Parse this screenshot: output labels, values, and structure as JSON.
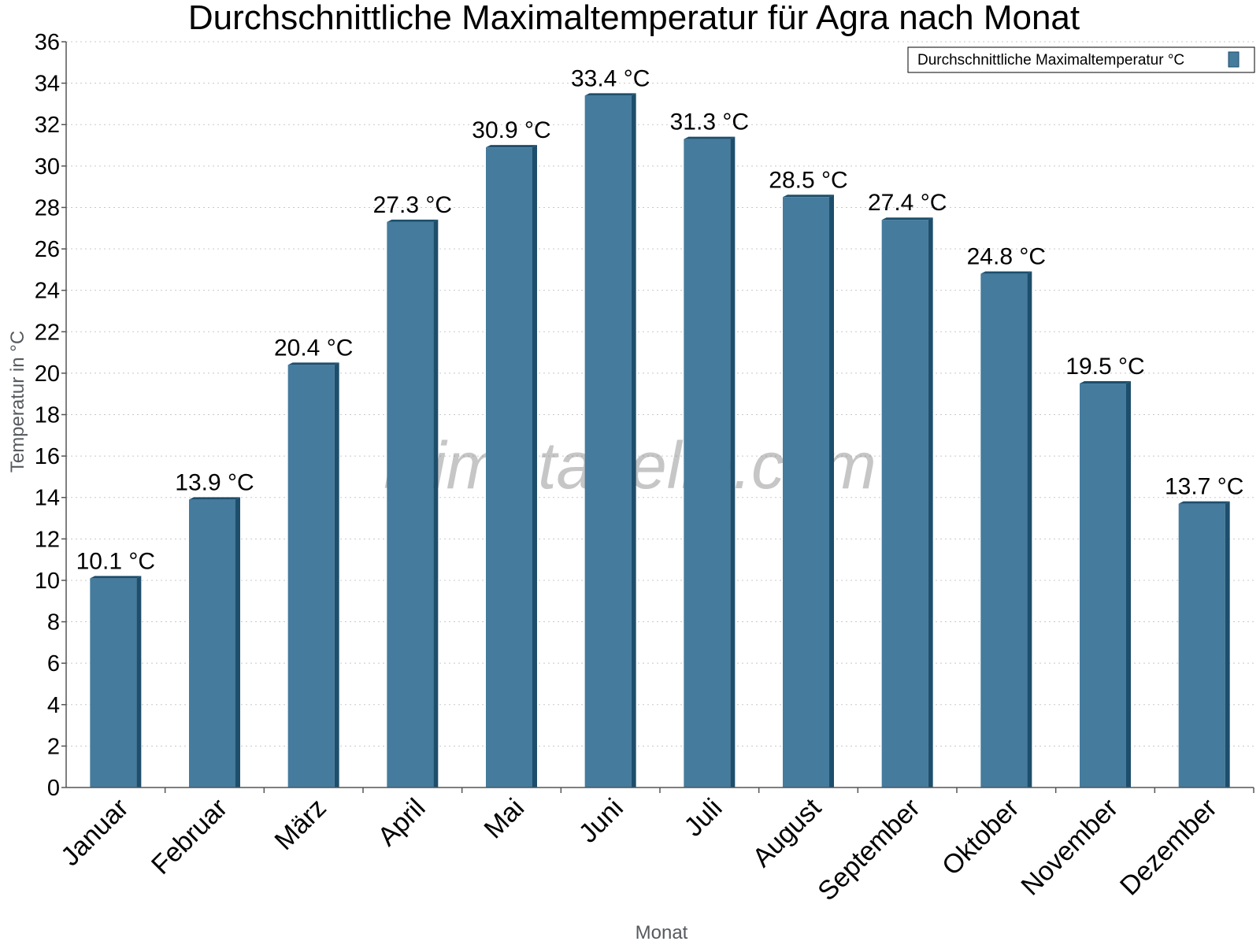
{
  "chart_data": {
    "type": "bar",
    "title": "Durchschnittliche Maximaltemperatur für Agra nach Monat",
    "xlabel": "Monat",
    "ylabel": "Temperatur in °C",
    "ylim": [
      0,
      36
    ],
    "ytick_step": 2,
    "grid": true,
    "legend_position": "top-right",
    "categories": [
      "Januar",
      "Februar",
      "März",
      "April",
      "Mai",
      "Juni",
      "Juli",
      "August",
      "September",
      "Oktober",
      "November",
      "Dezember"
    ],
    "series": [
      {
        "name": "Durchschnittliche Maximaltemperatur °C",
        "values": [
          10.1,
          13.9,
          20.4,
          27.3,
          30.9,
          33.4,
          31.3,
          28.5,
          27.4,
          24.8,
          19.5,
          13.7
        ],
        "value_labels": [
          "10.1 °C",
          "13.9 °C",
          "20.4 °C",
          "27.3 °C",
          "30.9 °C",
          "33.4 °C",
          "31.3 °C",
          "28.5 °C",
          "27.4 °C",
          "24.8 °C",
          "19.5 °C",
          "13.7 °C"
        ]
      }
    ],
    "colors": {
      "bar": "#457b9d",
      "bar_side": "#1d4e6c"
    },
    "watermark": "klimatabelle.com"
  }
}
